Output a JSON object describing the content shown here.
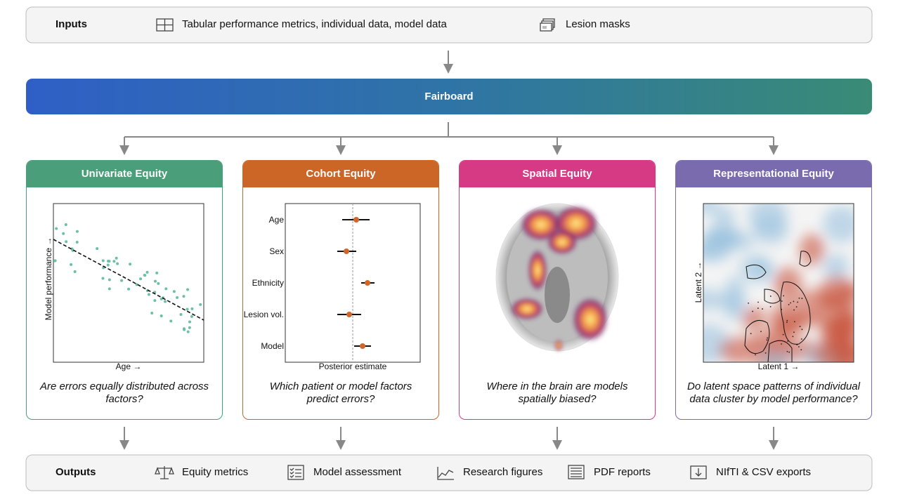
{
  "inputs": {
    "label": "Inputs",
    "items": [
      "Tabular performance metrics, individual data, model data",
      "Lesion masks"
    ]
  },
  "hub": {
    "label": "Fairboard"
  },
  "modules": [
    {
      "title": "Univariate Equity",
      "x_label": "Age →",
      "y_label": "Model performance →",
      "question": "Are errors equally distributed across factors?"
    },
    {
      "title": "Cohort Equity",
      "categories": [
        "Age",
        "Sex",
        "Ethnicity",
        "Lesion vol.",
        "Model"
      ],
      "x_label": "Posterior estimate",
      "question": "Which patient or model factors predict errors?"
    },
    {
      "title": "Spatial Equity",
      "question": "Where in the brain are models spatially biased?"
    },
    {
      "title": "Representational Equity",
      "x_label": "Latent 1 →",
      "y_label": "Latent 2 →",
      "question": "Do latent space patterns of individual data cluster by model performance?"
    }
  ],
  "outputs": {
    "label": "Outputs",
    "items": [
      "Equity metrics",
      "Model assessment",
      "Research figures",
      "PDF reports",
      "NIfTI & CSV exports"
    ]
  }
}
